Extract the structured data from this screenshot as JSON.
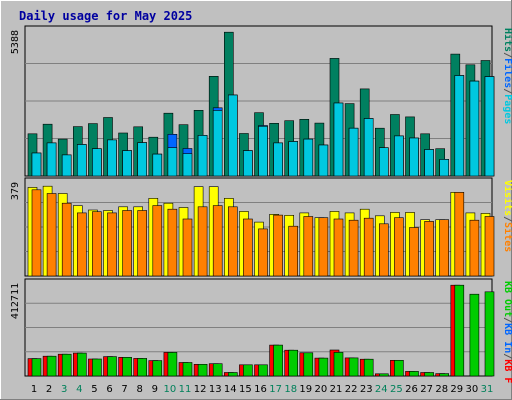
{
  "chart_data": {
    "type": "bar",
    "title": "Daily usage for May 2025",
    "days": [
      "1",
      "2",
      "3",
      "4",
      "5",
      "6",
      "7",
      "8",
      "9",
      "10",
      "11",
      "12",
      "13",
      "14",
      "15",
      "16",
      "17",
      "18",
      "19",
      "20",
      "21",
      "22",
      "23",
      "24",
      "25",
      "26",
      "27",
      "28",
      "29",
      "30",
      "31"
    ],
    "weekend_days": [
      "3",
      "4",
      "10",
      "11",
      "17",
      "18",
      "24",
      "25",
      "31"
    ],
    "panels": [
      {
        "name": "hits-files-pages",
        "max_label": "5388",
        "ymax": 5388,
        "side_labels": [
          {
            "text": "Pages",
            "color": "#00c8e0"
          },
          {
            "text": "/",
            "color": "#555555"
          },
          {
            "text": "Files",
            "color": "#0066ff"
          },
          {
            "text": "/",
            "color": "#555555"
          },
          {
            "text": "Hits",
            "color": "#008060"
          }
        ],
        "series": [
          {
            "name": "Hits",
            "color": "#008060",
            "values": [
              1580,
              1940,
              1380,
              1850,
              1960,
              2190,
              1610,
              1840,
              1450,
              2350,
              1920,
              2460,
              3730,
              5380,
              1590,
              2370,
              1970,
              2070,
              2120,
              1980,
              4400,
              2710,
              3260,
              1790,
              2300,
              2210,
              1580,
              1020,
              4560,
              4160,
              4320
            ]
          },
          {
            "name": "Files",
            "color": "#0066ff",
            "values": [
              860,
              1240,
              790,
              1180,
              1020,
              1350,
              950,
              1250,
              820,
              1560,
              1030,
              1520,
              2550,
              3030,
              950,
              1890,
              1240,
              1290,
              1380,
              1160,
              2730,
              1790,
              2150,
              1060,
              1500,
              1420,
              990,
              620,
              3760,
              3550,
              3720
            ]
          },
          {
            "name": "Pages",
            "color": "#00c8e0",
            "values": [
              860,
              1240,
              790,
              1180,
              1020,
              1350,
              950,
              1250,
              820,
              1060,
              840,
              1520,
              2450,
              3030,
              950,
              1860,
              1240,
              1290,
              1380,
              1160,
              2730,
              1790,
              2150,
              1060,
              1500,
              1420,
              990,
              620,
              3760,
              3550,
              3720
            ]
          }
        ]
      },
      {
        "name": "visits-sites",
        "max_label": "379",
        "ymax": 379,
        "side_labels": [
          {
            "text": "Sites",
            "color": "#ff8000"
          },
          {
            "text": "/",
            "color": "#555555"
          },
          {
            "text": "Visits",
            "color": "#ffff00"
          }
        ],
        "series": [
          {
            "name": "Visits",
            "color": "#ffff00",
            "values": [
              365,
              370,
              340,
              290,
              272,
              270,
              285,
              285,
              320,
              300,
              282,
              368,
              368,
              320,
              266,
              222,
              254,
              250,
              260,
              240,
              266,
              260,
              275,
              248,
              262,
              262,
              232,
              232,
              345,
              260,
              258
            ]
          },
          {
            "name": "Sites",
            "color": "#ff8000",
            "values": [
              355,
              340,
              300,
              260,
              265,
              260,
              270,
              270,
              290,
              275,
              235,
              285,
              290,
              285,
              235,
              194,
              251,
              205,
              245,
              240,
              235,
              230,
              238,
              215,
              240,
              200,
              225,
              232,
              345,
              230,
              245
            ]
          }
        ]
      },
      {
        "name": "kbin-kbout-kbf",
        "max_label": "412711",
        "ymax": 412711,
        "side_labels": [
          {
            "text": "KB F",
            "color": "#ff0000"
          },
          {
            "text": "/",
            "color": "#555555"
          },
          {
            "text": "KB In",
            "color": "#0066ff"
          },
          {
            "text": "/",
            "color": "#555555"
          },
          {
            "text": "KB Out",
            "color": "#00cc00"
          }
        ],
        "series": [
          {
            "name": "KB F",
            "color": "#ff0000",
            "values": [
              79000,
              90000,
              99000,
              104000,
              77000,
              88000,
              85000,
              80000,
              70000,
              107000,
              61000,
              53000,
              56000,
              16000,
              51000,
              51000,
              140000,
              117000,
              105000,
              81000,
              118000,
              82000,
              76000,
              10000,
              71000,
              21000,
              16000,
              11000,
              412000,
              0,
              0
            ]
          },
          {
            "name": "KB Out",
            "color": "#00cc00",
            "values": [
              79000,
              90000,
              99000,
              104000,
              77000,
              88000,
              85000,
              80000,
              70000,
              107000,
              61000,
              53000,
              56000,
              16000,
              51000,
              51000,
              140000,
              117000,
              105000,
              81000,
              107000,
              82000,
              76000,
              10000,
              71000,
              21000,
              16000,
              11000,
              412000,
              371000,
              382000
            ]
          }
        ]
      }
    ]
  }
}
